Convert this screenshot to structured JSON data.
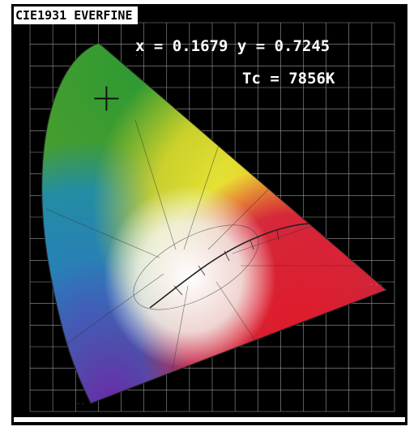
{
  "title": "CIE1931 EVERFINE",
  "readout": {
    "xy": "x = 0.1679 y = 0.7245",
    "cct": "Tc = 7856K"
  },
  "chart_data": {
    "type": "scatter",
    "title": "CIE1931 EVERFINE",
    "xlabel": "",
    "ylabel": "",
    "xlim": [
      0.0,
      0.8
    ],
    "ylim": [
      0.0,
      0.9
    ],
    "grid": true,
    "series": [
      {
        "values": [
          {
            "x": 0.1679,
            "y": 0.7245
          }
        ]
      }
    ],
    "annotations": [
      "Tc = 7856K"
    ]
  },
  "colors": {
    "background": "#000000",
    "grid": "#cfcfcf",
    "marker": "#111111",
    "locus": "#333333"
  }
}
